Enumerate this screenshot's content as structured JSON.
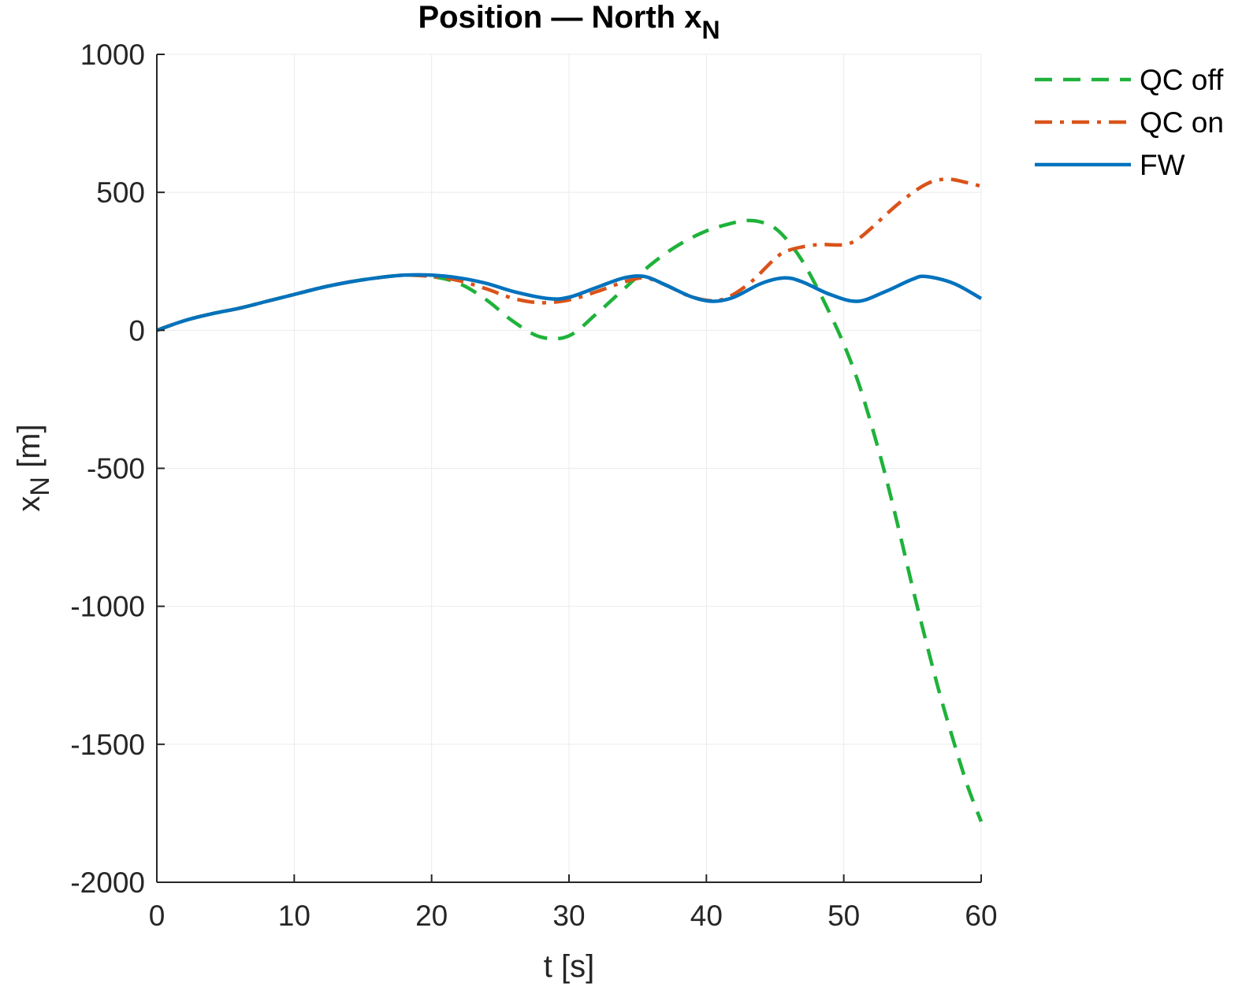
{
  "chart_data": {
    "type": "line",
    "title": "Position — North x",
    "title_subscript": "N",
    "xlabel": "t [s]",
    "ylabel": "x",
    "ylabel_subscript": "N",
    "ylabel_unit": " [m]",
    "xlim": [
      0,
      60
    ],
    "ylim": [
      -2000,
      1000
    ],
    "xticks": [
      0,
      10,
      20,
      30,
      40,
      50,
      60
    ],
    "yticks": [
      -2000,
      -1500,
      -1000,
      -500,
      0,
      500,
      1000
    ],
    "grid": true,
    "legend_position": "top-right",
    "series": [
      {
        "name": "QC off",
        "color": "#1fb23a",
        "style": "dashed",
        "x": [
          0,
          2,
          4,
          6,
          8,
          10,
          12,
          14,
          16,
          18,
          20,
          22,
          24,
          26,
          28,
          30,
          32,
          34,
          36,
          38,
          40,
          42,
          43,
          44,
          45,
          46,
          47,
          48,
          49,
          50,
          51,
          52,
          53,
          54,
          55,
          56,
          57,
          58,
          59,
          60
        ],
        "y": [
          0,
          35,
          60,
          80,
          105,
          130,
          155,
          175,
          190,
          200,
          195,
          170,
          110,
          30,
          -25,
          -20,
          60,
          150,
          240,
          310,
          360,
          390,
          398,
          392,
          370,
          320,
          250,
          160,
          60,
          -50,
          -180,
          -340,
          -520,
          -720,
          -930,
          -1130,
          -1320,
          -1490,
          -1650,
          -1780
        ]
      },
      {
        "name": "QC on",
        "color": "#d95319",
        "style": "dashdot",
        "x": [
          0,
          2,
          4,
          6,
          8,
          10,
          12,
          14,
          16,
          18,
          20,
          22,
          24,
          26,
          28,
          30,
          32,
          34,
          35.5,
          37,
          39,
          41,
          43,
          45,
          46,
          48,
          50,
          51,
          52,
          54,
          56,
          57.5,
          59,
          60
        ],
        "y": [
          0,
          35,
          60,
          80,
          105,
          130,
          155,
          175,
          190,
          200,
          195,
          180,
          150,
          115,
          100,
          110,
          140,
          175,
          190,
          165,
          120,
          110,
          165,
          260,
          290,
          310,
          310,
          330,
          370,
          460,
          530,
          548,
          535,
          522
        ]
      },
      {
        "name": "FW",
        "color": "#0072bd",
        "style": "solid",
        "x": [
          0,
          2,
          4,
          6,
          8,
          10,
          12,
          14,
          16,
          18,
          20,
          22,
          24,
          26,
          28.5,
          30,
          32,
          34,
          35.5,
          37,
          39,
          40.5,
          42,
          44,
          45.7,
          47,
          49,
          51,
          53,
          55,
          56,
          58,
          60
        ],
        "y": [
          0,
          35,
          60,
          80,
          105,
          130,
          155,
          175,
          190,
          200,
          200,
          190,
          170,
          140,
          115,
          120,
          155,
          190,
          195,
          165,
          120,
          105,
          120,
          170,
          190,
          175,
          130,
          105,
          140,
          185,
          195,
          170,
          115
        ]
      }
    ]
  }
}
